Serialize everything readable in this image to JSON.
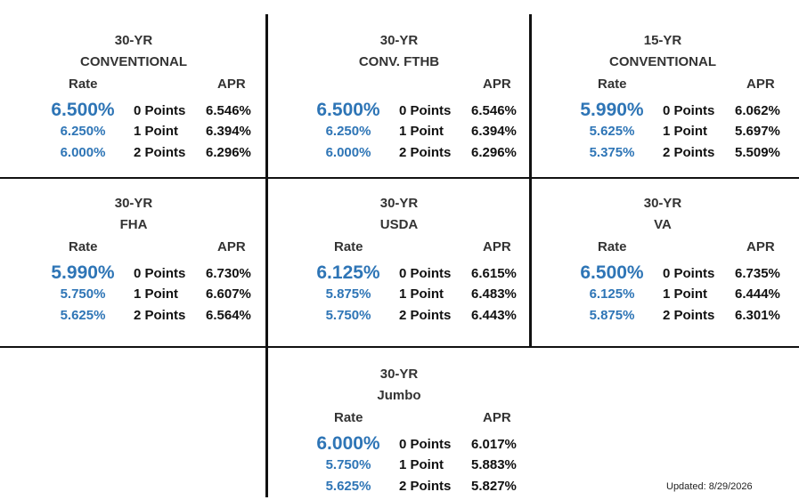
{
  "colors": {
    "rate": "#2e75b6",
    "text": "#333333",
    "grid": "#111111"
  },
  "headers": {
    "rate": "Rate",
    "apr": "APR"
  },
  "products": [
    {
      "title1": "30-YR",
      "title2": "CONVENTIONAL",
      "show_rate_header": true,
      "rows": [
        {
          "rate": "6.500%",
          "points": "0 Points",
          "apr": "6.546%"
        },
        {
          "rate": "6.250%",
          "points": "1 Point",
          "apr": "6.394%"
        },
        {
          "rate": "6.000%",
          "points": "2 Points",
          "apr": "6.296%"
        }
      ]
    },
    {
      "title1": "30-YR",
      "title2": "CONV. FTHB",
      "show_rate_header": false,
      "rows": [
        {
          "rate": "6.500%",
          "points": "0 Points",
          "apr": "6.546%"
        },
        {
          "rate": "6.250%",
          "points": "1 Point",
          "apr": "6.394%"
        },
        {
          "rate": "6.000%",
          "points": "2 Points",
          "apr": "6.296%"
        }
      ]
    },
    {
      "title1": "15-YR",
      "title2": "CONVENTIONAL",
      "show_rate_header": true,
      "rows": [
        {
          "rate": "5.990%",
          "points": "0 Points",
          "apr": "6.062%"
        },
        {
          "rate": "5.625%",
          "points": "1 Point",
          "apr": "5.697%"
        },
        {
          "rate": "5.375%",
          "points": "2 Points",
          "apr": "5.509%"
        }
      ]
    },
    {
      "title1": "30-YR",
      "title2": "FHA",
      "show_rate_header": true,
      "rows": [
        {
          "rate": "5.990%",
          "points": "0 Points",
          "apr": "6.730%"
        },
        {
          "rate": "5.750%",
          "points": "1 Point",
          "apr": "6.607%"
        },
        {
          "rate": "5.625%",
          "points": "2 Points",
          "apr": "6.564%"
        }
      ]
    },
    {
      "title1": "30-YR",
      "title2": "USDA",
      "show_rate_header": true,
      "rows": [
        {
          "rate": "6.125%",
          "points": "0 Points",
          "apr": "6.615%"
        },
        {
          "rate": "5.875%",
          "points": "1 Point",
          "apr": "6.483%"
        },
        {
          "rate": "5.750%",
          "points": "2 Points",
          "apr": "6.443%"
        }
      ]
    },
    {
      "title1": "30-YR",
      "title2": "VA",
      "show_rate_header": true,
      "rows": [
        {
          "rate": "6.500%",
          "points": "0 Points",
          "apr": "6.735%"
        },
        {
          "rate": "6.125%",
          "points": "1 Point",
          "apr": "6.444%"
        },
        {
          "rate": "5.875%",
          "points": "2 Points",
          "apr": "6.301%"
        }
      ]
    },
    {
      "title1": "30-YR",
      "title2": "Jumbo",
      "show_rate_header": true,
      "rows": [
        {
          "rate": "6.000%",
          "points": "0 Points",
          "apr": "6.017%"
        },
        {
          "rate": "5.750%",
          "points": "1 Point",
          "apr": "5.883%"
        },
        {
          "rate": "5.625%",
          "points": "2 Points",
          "apr": "5.827%"
        }
      ]
    }
  ],
  "updated": "Updated: 8/29/2026"
}
